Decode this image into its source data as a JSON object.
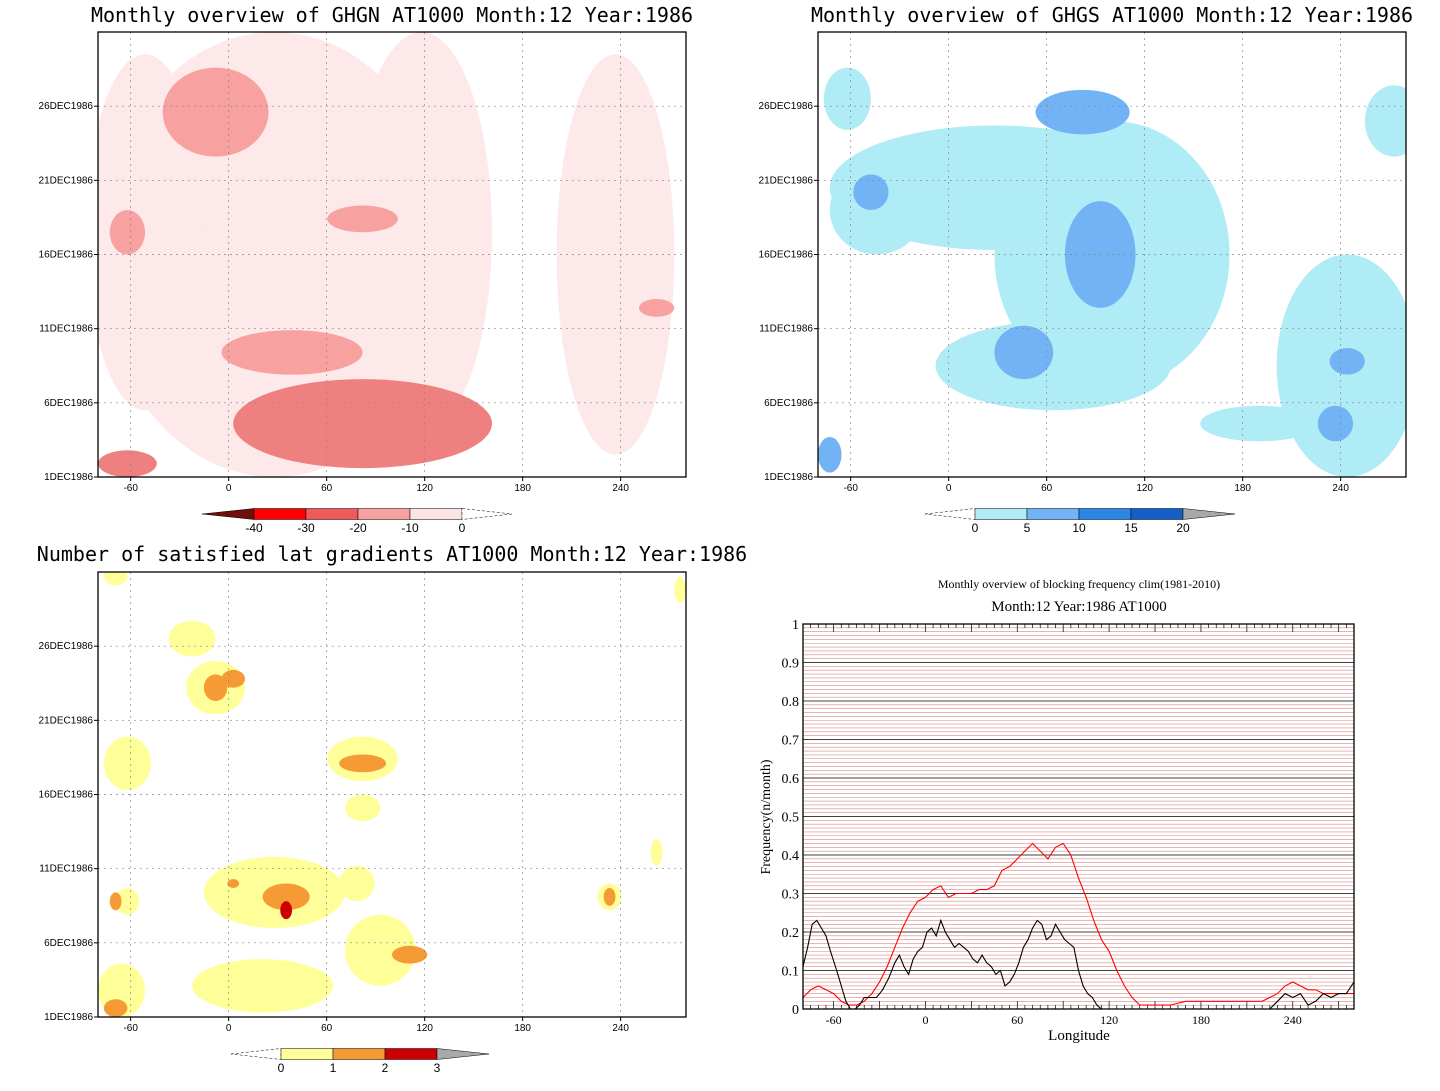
{
  "chart_data": [
    {
      "id": "ghgn",
      "type": "heatmap",
      "title": "Monthly overview of GHGN AT1000 Month:12 Year:1986",
      "x_ticks": [
        -60,
        0,
        60,
        120,
        180,
        240
      ],
      "y_ticks": [
        "1DEC1986",
        "6DEC1986",
        "11DEC1986",
        "16DEC1986",
        "21DEC1986",
        "26DEC1986"
      ],
      "xlim": [
        -80,
        280
      ],
      "ylim": [
        1,
        31
      ],
      "colorbar": {
        "labels": [
          "-40",
          "-30",
          "-20",
          "-10",
          "0"
        ],
        "colors": [
          "#6e0f0a",
          "#ff0000",
          "#ef5a5a",
          "#f7a1a1",
          "#fde4e4"
        ]
      },
      "palette": [
        "#fde9e9",
        "#f7a1a1",
        "#ef8080",
        "#d63a3a"
      ]
    },
    {
      "id": "ghgs",
      "type": "heatmap",
      "title": "Monthly overview of GHGS AT1000 Month:12 Year:1986",
      "x_ticks": [
        -60,
        0,
        60,
        120,
        180,
        240
      ],
      "y_ticks": [
        "1DEC1986",
        "6DEC1986",
        "11DEC1986",
        "16DEC1986",
        "21DEC1986",
        "26DEC1986"
      ],
      "xlim": [
        -80,
        280
      ],
      "ylim": [
        1,
        31
      ],
      "colorbar": {
        "labels": [
          "0",
          "5",
          "10",
          "15",
          "20"
        ],
        "colors": [
          "#b0ecf5",
          "#71b3f5",
          "#2b86e6",
          "#1560c8",
          "#a9a9a9"
        ]
      },
      "palette": [
        "#b0ecf5",
        "#71b3f5",
        "#3f8be0"
      ]
    },
    {
      "id": "satgrad",
      "type": "heatmap",
      "title": "Number of satisfied lat gradients AT1000 Month:12 Year:1986",
      "x_ticks": [
        -60,
        0,
        60,
        120,
        180,
        240
      ],
      "y_ticks": [
        "1DEC1986",
        "6DEC1986",
        "11DEC1986",
        "16DEC1986",
        "21DEC1986",
        "26DEC1986"
      ],
      "xlim": [
        -80,
        280
      ],
      "ylim": [
        1,
        31
      ],
      "colorbar": {
        "labels": [
          "0",
          "1",
          "2",
          "3"
        ],
        "colors": [
          "#ffff99",
          "#f59a34",
          "#cc0000",
          "#a9a9a9"
        ]
      },
      "palette": [
        "#ffff99",
        "#f59a34",
        "#cc0000"
      ]
    },
    {
      "id": "blockfreq",
      "type": "line",
      "title": "Monthly overview of blocking frequency clim(1981-2010)",
      "subtitle": "Month:12 Year:1986  AT1000",
      "xlabel": "Longitude",
      "ylabel": "Frequency(n/month)",
      "xlim": [
        -80,
        280
      ],
      "ylim": [
        0,
        1
      ],
      "x_ticks": [
        -60,
        0,
        60,
        120,
        180,
        240
      ],
      "y_ticks": [
        "0",
        "0.1",
        "0.2",
        "0.3",
        "0.4",
        "0.5",
        "0.6",
        "0.7",
        "0.8",
        "0.9",
        "1"
      ],
      "grid": true,
      "series": [
        {
          "color": "#ff0000",
          "x": [
            -80,
            -75,
            -70,
            -65,
            -60,
            -55,
            -50,
            -45,
            -40,
            -35,
            -30,
            -25,
            -20,
            -15,
            -10,
            -5,
            0,
            5,
            10,
            15,
            20,
            25,
            30,
            35,
            40,
            45,
            50,
            55,
            60,
            65,
            70,
            75,
            80,
            85,
            90,
            95,
            100,
            105,
            110,
            115,
            120,
            125,
            130,
            135,
            140,
            145,
            150,
            160,
            170,
            180,
            190,
            200,
            210,
            220,
            230,
            235,
            240,
            245,
            250,
            255,
            260,
            265,
            270,
            275,
            280
          ],
          "y": [
            0.03,
            0.05,
            0.06,
            0.05,
            0.04,
            0.02,
            0.01,
            0.01,
            0.02,
            0.04,
            0.07,
            0.11,
            0.16,
            0.21,
            0.25,
            0.28,
            0.29,
            0.31,
            0.32,
            0.29,
            0.3,
            0.3,
            0.3,
            0.31,
            0.31,
            0.32,
            0.36,
            0.37,
            0.39,
            0.41,
            0.43,
            0.41,
            0.39,
            0.42,
            0.43,
            0.4,
            0.34,
            0.29,
            0.23,
            0.18,
            0.15,
            0.1,
            0.06,
            0.03,
            0.01,
            0.01,
            0.01,
            0.01,
            0.02,
            0.02,
            0.02,
            0.02,
            0.02,
            0.02,
            0.04,
            0.06,
            0.07,
            0.06,
            0.05,
            0.05,
            0.04,
            0.04,
            0.04,
            0.04,
            0.04
          ]
        },
        {
          "color": "#000000",
          "x": [
            -80,
            -77,
            -74,
            -71,
            -68,
            -65,
            -62,
            -58,
            -55,
            -52,
            -49,
            -46,
            -43,
            -40,
            -36,
            -32,
            -28,
            -24,
            -20,
            -17,
            -14,
            -11,
            -8,
            -5,
            -2,
            1,
            4,
            7,
            10,
            13,
            16,
            19,
            22,
            25,
            28,
            31,
            34,
            37,
            40,
            43,
            46,
            49,
            52,
            55,
            58,
            61,
            64,
            67,
            70,
            73,
            76,
            79,
            82,
            85,
            88,
            91,
            94,
            97,
            100,
            103,
            106,
            109,
            112,
            115,
            120,
            140,
            160,
            180,
            200,
            220,
            225,
            230,
            235,
            240,
            245,
            250,
            255,
            260,
            265,
            270,
            275,
            280
          ],
          "y": [
            0.11,
            0.16,
            0.22,
            0.23,
            0.21,
            0.19,
            0.15,
            0.1,
            0.06,
            0.02,
            0.0,
            0.0,
            0.01,
            0.03,
            0.03,
            0.03,
            0.05,
            0.08,
            0.12,
            0.14,
            0.11,
            0.09,
            0.13,
            0.15,
            0.16,
            0.2,
            0.21,
            0.19,
            0.23,
            0.2,
            0.18,
            0.16,
            0.17,
            0.16,
            0.15,
            0.13,
            0.12,
            0.14,
            0.12,
            0.11,
            0.09,
            0.1,
            0.06,
            0.07,
            0.09,
            0.12,
            0.16,
            0.18,
            0.21,
            0.23,
            0.22,
            0.18,
            0.19,
            0.22,
            0.2,
            0.18,
            0.17,
            0.16,
            0.1,
            0.06,
            0.04,
            0.03,
            0.01,
            0.0,
            0.0,
            0.0,
            0.0,
            0.0,
            0.0,
            0.0,
            0.0,
            0.02,
            0.04,
            0.03,
            0.04,
            0.01,
            0.02,
            0.04,
            0.03,
            0.04,
            0.04,
            0.07
          ]
        }
      ]
    }
  ]
}
